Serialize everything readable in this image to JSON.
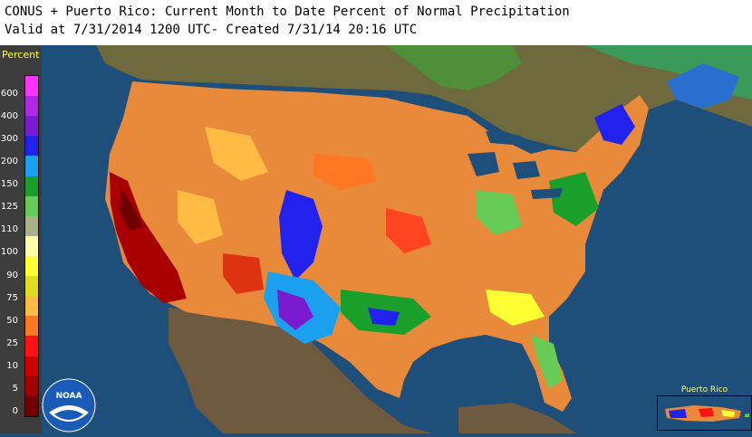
{
  "header": {
    "title_line": "CONUS + Puerto Rico: Current Month to Date Percent of Normal Precipitation",
    "valid_line": "Valid at 7/31/2014 1200 UTC- Created 7/31/14 20:16 UTC"
  },
  "legend": {
    "title": "Percent",
    "labels": [
      "600",
      "400",
      "300",
      "200",
      "150",
      "125",
      "110",
      "100",
      "90",
      "75",
      "50",
      "25",
      "10",
      "5",
      "0"
    ],
    "colors": [
      "#ff33ff",
      "#b028e6",
      "#7a1bd0",
      "#2222ee",
      "#1aa0ee",
      "#1aa02a",
      "#66cc55",
      "#aab08a",
      "#ffffaa",
      "#ffff33",
      "#dddd22",
      "#ffbb44",
      "#ff7722",
      "#ff1111",
      "#cc0000",
      "#a00000",
      "#700000"
    ]
  },
  "map": {
    "ocean_color": "#1e4e7a",
    "land_outside_color": "#6e5a3e"
  },
  "inset": {
    "title": "Puerto Rico"
  },
  "logo": {
    "text": "NOAA"
  }
}
